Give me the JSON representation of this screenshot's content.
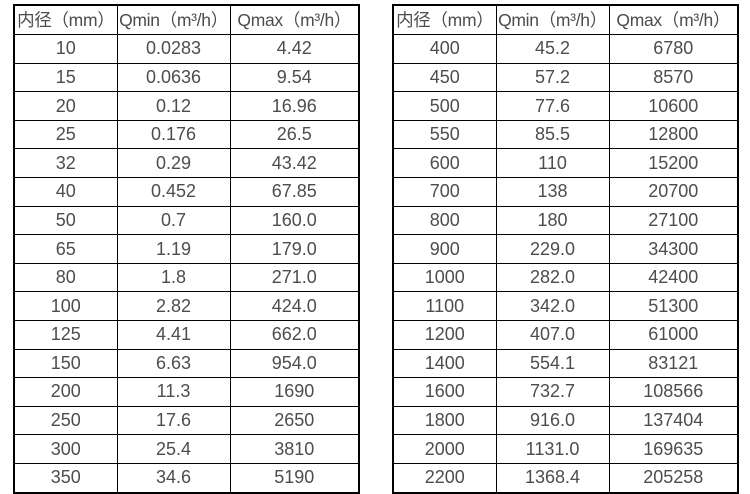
{
  "page": {
    "background_color": "#ffffff",
    "border_color": "#000000",
    "text_color": "#4d4d4d"
  },
  "chart_data": [
    {
      "type": "table",
      "name": "flow-table-dn10-350",
      "columns": [
        "内径（mm）",
        "Qmin（m³/h）",
        "Qmax（m³/h）"
      ],
      "rows": [
        [
          "10",
          "0.0283",
          "4.42"
        ],
        [
          "15",
          "0.0636",
          "9.54"
        ],
        [
          "20",
          "0.12",
          "16.96"
        ],
        [
          "25",
          "0.176",
          "26.5"
        ],
        [
          "32",
          "0.29",
          "43.42"
        ],
        [
          "40",
          "0.452",
          "67.85"
        ],
        [
          "50",
          "0.7",
          "160.0"
        ],
        [
          "65",
          "1.19",
          "179.0"
        ],
        [
          "80",
          "1.8",
          "271.0"
        ],
        [
          "100",
          "2.82",
          "424.0"
        ],
        [
          "125",
          "4.41",
          "662.0"
        ],
        [
          "150",
          "6.63",
          "954.0"
        ],
        [
          "200",
          "11.3",
          "1690"
        ],
        [
          "250",
          "17.6",
          "2650"
        ],
        [
          "300",
          "25.4",
          "3810"
        ],
        [
          "350",
          "34.6",
          "5190"
        ]
      ]
    },
    {
      "type": "table",
      "name": "flow-table-dn400-2200",
      "columns": [
        "内径（mm）",
        "Qmin（m³/h）",
        "Qmax（m³/h）"
      ],
      "rows": [
        [
          "400",
          "45.2",
          "6780"
        ],
        [
          "450",
          "57.2",
          "8570"
        ],
        [
          "500",
          "77.6",
          "10600"
        ],
        [
          "550",
          "85.5",
          "12800"
        ],
        [
          "600",
          "110",
          "15200"
        ],
        [
          "700",
          "138",
          "20700"
        ],
        [
          "800",
          "180",
          "27100"
        ],
        [
          "900",
          "229.0",
          "34300"
        ],
        [
          "1000",
          "282.0",
          "42400"
        ],
        [
          "1100",
          "342.0",
          "51300"
        ],
        [
          "1200",
          "407.0",
          "61000"
        ],
        [
          "1400",
          "554.1",
          "83121"
        ],
        [
          "1600",
          "732.7",
          "108566"
        ],
        [
          "1800",
          "916.0",
          "137404"
        ],
        [
          "2000",
          "1131.0",
          "169635"
        ],
        [
          "2200",
          "1368.4",
          "205258"
        ]
      ]
    }
  ]
}
